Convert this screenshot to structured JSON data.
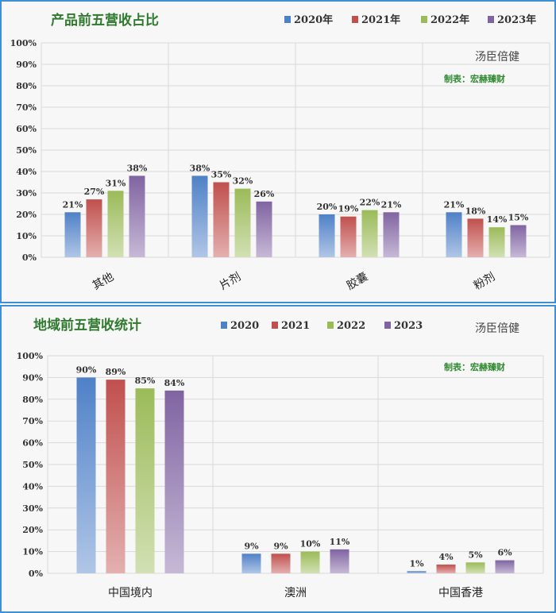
{
  "colors": {
    "series": [
      "#4f81c7",
      "#c0504d",
      "#9bbb59",
      "#8064a2"
    ],
    "title": "#2f7a2f",
    "border": "#3f8fd8"
  },
  "chart_data": [
    {
      "type": "bar",
      "title": "产品前五营收占比",
      "categories": [
        "其他",
        "片剂",
        "胶囊",
        "粉剂"
      ],
      "series": [
        {
          "name": "2020年",
          "values": [
            21,
            38,
            20,
            21
          ]
        },
        {
          "name": "2021年",
          "values": [
            27,
            35,
            19,
            18
          ]
        },
        {
          "name": "2022年",
          "values": [
            31,
            32,
            22,
            14
          ]
        },
        {
          "name": "2023年",
          "values": [
            38,
            26,
            21,
            15
          ]
        }
      ],
      "ylim": [
        0,
        100
      ],
      "yticks": [
        "0%",
        "10%",
        "20%",
        "30%",
        "40%",
        "50%",
        "60%",
        "70%",
        "80%",
        "90%",
        "100%"
      ],
      "value_suffix": "%",
      "legend_position": "top-right",
      "author": "汤臣倍健",
      "maker": "制表：宏赫臻财"
    },
    {
      "type": "bar",
      "title": "地域前五营收统计",
      "categories": [
        "中国境内",
        "澳洲",
        "中国香港"
      ],
      "series": [
        {
          "name": "2020",
          "values": [
            90,
            9,
            1
          ]
        },
        {
          "name": "2021",
          "values": [
            89,
            9,
            4
          ]
        },
        {
          "name": "2022",
          "values": [
            85,
            10,
            5
          ]
        },
        {
          "name": "2023",
          "values": [
            84,
            11,
            6
          ]
        }
      ],
      "ylim": [
        0,
        100
      ],
      "yticks": [
        "0%",
        "10%",
        "20%",
        "30%",
        "40%",
        "50%",
        "60%",
        "70%",
        "80%",
        "90%",
        "100%"
      ],
      "value_suffix": "%",
      "legend_position": "top",
      "author": "汤臣倍健",
      "maker": "制表：宏赫臻财"
    }
  ]
}
